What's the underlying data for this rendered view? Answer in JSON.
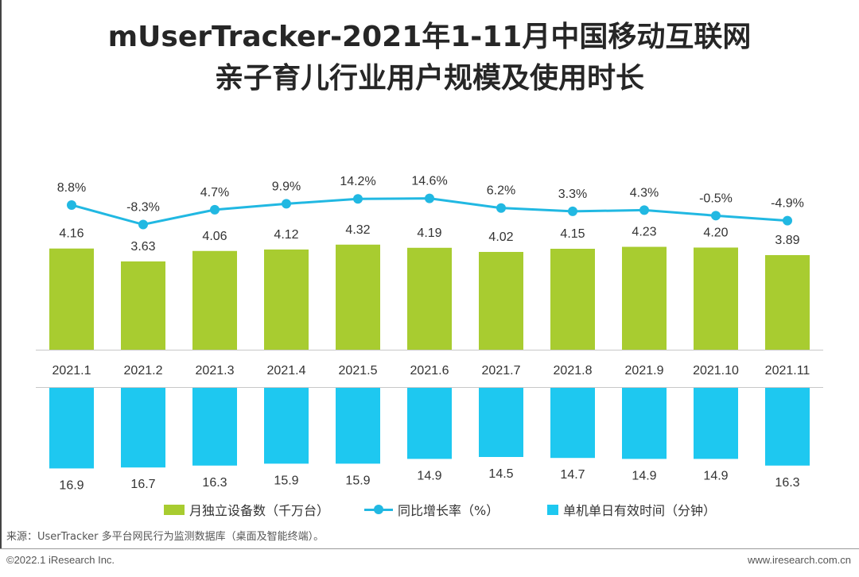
{
  "title_line1": "mUserTracker-2021年1-11月中国移动互联网",
  "title_line2": "亲子育儿行业用户规模及使用时长",
  "legend": {
    "bar_label": "月独立设备数（千万台）",
    "line_label": "同比增长率（%）",
    "bottom_label": "单机单日有效时间（分钟）"
  },
  "source": "来源：UserTracker 多平台网民行为监测数据库（桌面及智能终端）。",
  "copyright": "©2022.1 iResearch Inc.",
  "website": "www.iresearch.com.cn",
  "colors": {
    "bar": "#A8CC30",
    "line": "#21B8E2",
    "bottom_bar": "#1EC8F0"
  },
  "chart_data": {
    "type": "bar",
    "categories": [
      "2021.1",
      "2021.2",
      "2021.3",
      "2021.4",
      "2021.5",
      "2021.6",
      "2021.7",
      "2021.8",
      "2021.9",
      "2021.10",
      "2021.11"
    ],
    "series": [
      {
        "name": "月独立设备数（千万台）",
        "type": "bar",
        "values": [
          4.16,
          3.63,
          4.06,
          4.12,
          4.32,
          4.19,
          4.02,
          4.15,
          4.23,
          4.2,
          3.89
        ],
        "labels": [
          "4.16",
          "3.63",
          "4.06",
          "4.12",
          "4.32",
          "4.19",
          "4.02",
          "4.15",
          "4.23",
          "4.20",
          "3.89"
        ]
      },
      {
        "name": "同比增长率（%）",
        "type": "line",
        "values": [
          8.8,
          -8.3,
          4.7,
          9.9,
          14.2,
          14.6,
          6.2,
          3.3,
          4.3,
          -0.5,
          -4.9
        ],
        "labels": [
          "8.8%",
          "-8.3%",
          "4.7%",
          "9.9%",
          "14.2%",
          "14.6%",
          "6.2%",
          "3.3%",
          "4.3%",
          "-0.5%",
          "-4.9%"
        ]
      },
      {
        "name": "单机单日有效时间（分钟）",
        "type": "bar",
        "values": [
          16.9,
          16.7,
          16.3,
          15.9,
          15.9,
          14.9,
          14.5,
          14.7,
          14.9,
          14.9,
          16.3
        ],
        "labels": [
          "16.9",
          "16.7",
          "16.3",
          "15.9",
          "15.9",
          "14.9",
          "14.5",
          "14.7",
          "14.9",
          "14.9",
          "16.3"
        ]
      }
    ]
  }
}
